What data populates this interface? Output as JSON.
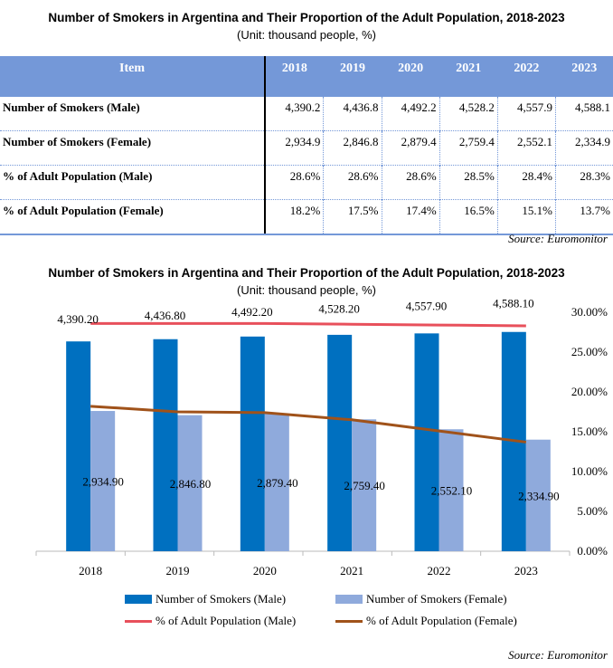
{
  "table": {
    "title": "Number of Smokers in  Argentina and Their Proportion of the Adult Population, 2018-2023",
    "subtitle": "(Unit: thousand people, %)",
    "header": [
      "Item",
      "2018",
      "2019",
      "2020",
      "2021",
      "2022",
      "2023"
    ],
    "rows": [
      [
        "Number of Smokers (Male)",
        "4,390.2",
        "4,436.8",
        "4,492.2",
        "4,528.2",
        "4,557.9",
        "4,588.1"
      ],
      [
        "Number of Smokers (Female)",
        "2,934.9",
        "2,846.8",
        "2,879.4",
        "2,759.4",
        "2,552.1",
        "2,334.9"
      ],
      [
        "% of Adult Population  (Male)",
        "28.6%",
        "28.6%",
        "28.6%",
        "28.5%",
        "28.4%",
        "28.3%"
      ],
      [
        "% of Adult Population  (Female)",
        "18.2%",
        "17.5%",
        "17.4%",
        "16.5%",
        "15.1%",
        "13.7%"
      ]
    ],
    "source": "Source:  Euromonitor"
  },
  "chart_data": {
    "type": "bar",
    "title": "Number of Smokers in  Argentina and Their Proportion of the Adult Population, 2018-2023",
    "subtitle": "(Unit: thousand people, %)",
    "categories": [
      "2018",
      "2019",
      "2020",
      "2021",
      "2022",
      "2023"
    ],
    "left_ylim": [
      0,
      5000
    ],
    "right_ylim": [
      0,
      30
    ],
    "right_ticks": [
      "0.00%",
      "5.00%",
      "10.00%",
      "15.00%",
      "20.00%",
      "25.00%",
      "30.00%"
    ],
    "series": [
      {
        "name": "Number of Smokers (Male)",
        "kind": "bar",
        "axis": "left",
        "color": "#0070c0",
        "values": [
          4390.2,
          4436.8,
          4492.2,
          4528.2,
          4557.9,
          4588.1
        ],
        "labels": [
          "4,390.20",
          "4,436.80",
          "4,492.20",
          "4,528.20",
          "4,557.90",
          "4,588.10"
        ]
      },
      {
        "name": "Number of Smokers (Female)",
        "kind": "bar",
        "axis": "left",
        "color": "#8faadc",
        "values": [
          2934.9,
          2846.8,
          2879.4,
          2759.4,
          2552.1,
          2334.9
        ],
        "labels": [
          "2,934.90",
          "2,846.80",
          "2,879.40",
          "2,759.40",
          "2,552.10",
          "2,334.90"
        ]
      },
      {
        "name": "% of Adult Population (Male)",
        "kind": "line",
        "axis": "right",
        "color": "#e8505b",
        "values": [
          28.6,
          28.6,
          28.6,
          28.5,
          28.4,
          28.3
        ]
      },
      {
        "name": "% of Adult Population (Female)",
        "kind": "line",
        "axis": "right",
        "color": "#a0521a",
        "values": [
          18.2,
          17.5,
          17.4,
          16.5,
          15.1,
          13.7
        ]
      }
    ],
    "legend_position": "bottom",
    "source": "Source:  Euromonitor"
  }
}
